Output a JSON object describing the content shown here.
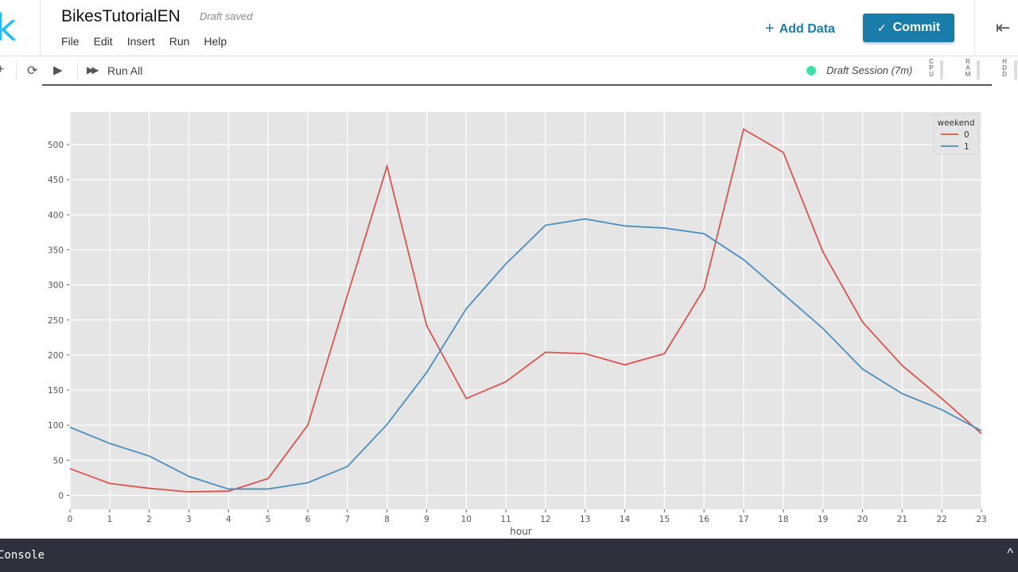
{
  "header": {
    "logo": "k",
    "title": "BikesTutorialEN",
    "status": "Draft saved",
    "menu": [
      "File",
      "Edit",
      "Insert",
      "Run",
      "Help"
    ],
    "add_data_label": "Add Data",
    "commit_label": "Commit"
  },
  "toolbar": {
    "run_all_label": "Run All",
    "session_label": "Draft Session (7m)",
    "session_color": "#3ee0a5",
    "meters": [
      "CPU",
      "RAM",
      "HDD"
    ]
  },
  "console": {
    "label": "Console"
  },
  "colors": {
    "accent": "#1a7ca8",
    "logo": "#20beff",
    "series0": "#d9544f",
    "series1": "#4a8fbf"
  },
  "chart_data": {
    "type": "line",
    "title": "",
    "xlabel": "hour",
    "ylabel": "",
    "x": [
      0,
      1,
      2,
      3,
      4,
      5,
      6,
      7,
      8,
      9,
      10,
      11,
      12,
      13,
      14,
      15,
      16,
      17,
      18,
      19,
      20,
      21,
      22,
      23
    ],
    "yticks": [
      0,
      50,
      100,
      150,
      200,
      250,
      300,
      350,
      400,
      450,
      500
    ],
    "ylim": [
      -20,
      545
    ],
    "xlim": [
      0,
      23
    ],
    "grid": true,
    "legend": {
      "title": "weekend",
      "position": "upper right",
      "entries": [
        "0",
        "1"
      ]
    },
    "series": [
      {
        "name": "0",
        "color": "#d9544f",
        "values": [
          38,
          17,
          10,
          5,
          6,
          24,
          100,
          285,
          469,
          242,
          138,
          162,
          204,
          202,
          186,
          202,
          294,
          522,
          489,
          347,
          247,
          185,
          138,
          88
        ]
      },
      {
        "name": "1",
        "color": "#4a8fbf",
        "values": [
          97,
          74,
          56,
          27,
          9,
          9,
          18,
          41,
          101,
          175,
          266,
          330,
          385,
          394,
          384,
          381,
          373,
          336,
          287,
          238,
          180,
          145,
          122,
          92
        ]
      }
    ]
  }
}
